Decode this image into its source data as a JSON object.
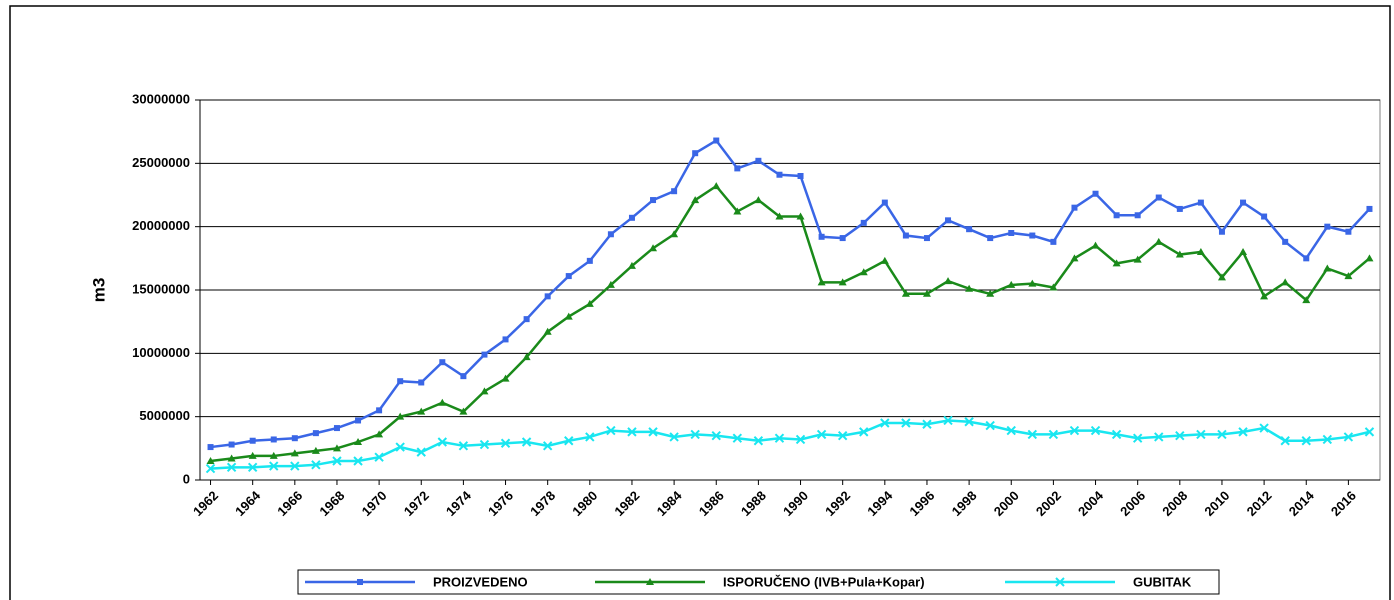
{
  "chart_data": {
    "type": "line",
    "ylabel": "m3",
    "x": [
      1962,
      1963,
      1964,
      1965,
      1966,
      1967,
      1968,
      1969,
      1970,
      1971,
      1972,
      1973,
      1974,
      1975,
      1976,
      1977,
      1978,
      1979,
      1980,
      1981,
      1982,
      1983,
      1984,
      1985,
      1986,
      1987,
      1988,
      1989,
      1990,
      1991,
      1992,
      1993,
      1994,
      1995,
      1996,
      1997,
      1998,
      1999,
      2000,
      2001,
      2002,
      2003,
      2004,
      2005,
      2006,
      2007,
      2008,
      2009,
      2010,
      2011,
      2012,
      2013,
      2014,
      2015,
      2016,
      2017
    ],
    "xlim": [
      1961.5,
      2017.5
    ],
    "xticks": [
      1962,
      1964,
      1966,
      1968,
      1970,
      1972,
      1974,
      1976,
      1978,
      1980,
      1982,
      1984,
      1986,
      1988,
      1990,
      1992,
      1994,
      1996,
      1998,
      2000,
      2002,
      2004,
      2006,
      2008,
      2010,
      2012,
      2014,
      2016
    ],
    "ylim": [
      0,
      30000000
    ],
    "yticks": [
      0,
      5000000,
      10000000,
      15000000,
      20000000,
      25000000,
      30000000
    ],
    "grid": true,
    "legend": "bottom",
    "series": [
      {
        "name": "PROIZVEDENO",
        "color": "#3a66e6",
        "marker": "square",
        "values": [
          2600000,
          2800000,
          3100000,
          3200000,
          3300000,
          3700000,
          4100000,
          4700000,
          5500000,
          7800000,
          7700000,
          9300000,
          8200000,
          9900000,
          11100000,
          12700000,
          14500000,
          16100000,
          17300000,
          19400000,
          20700000,
          22100000,
          22800000,
          25800000,
          26800000,
          24600000,
          25200000,
          24100000,
          24000000,
          19200000,
          19100000,
          20300000,
          21900000,
          19300000,
          19100000,
          20500000,
          19800000,
          19100000,
          19500000,
          19300000,
          18800000,
          21500000,
          22600000,
          20900000,
          20900000,
          22300000,
          21400000,
          21900000,
          19600000,
          21900000,
          20800000,
          18800000,
          17500000,
          20000000,
          19600000,
          21400000
        ]
      },
      {
        "name": "ISPORUČENO (IVB+Pula+Kopar)",
        "color": "#1a8a1a",
        "marker": "triangle",
        "values": [
          1500000,
          1700000,
          1900000,
          1900000,
          2100000,
          2300000,
          2500000,
          3000000,
          3600000,
          5000000,
          5400000,
          6100000,
          5400000,
          7000000,
          8000000,
          9700000,
          11700000,
          12900000,
          13900000,
          15400000,
          16900000,
          18300000,
          19400000,
          22100000,
          23200000,
          21200000,
          22100000,
          20800000,
          20800000,
          15600000,
          15600000,
          16400000,
          17300000,
          14700000,
          14700000,
          15700000,
          15100000,
          14700000,
          15400000,
          15500000,
          15200000,
          17500000,
          18500000,
          17100000,
          17400000,
          18800000,
          17800000,
          18000000,
          16000000,
          18000000,
          14500000,
          15600000,
          14200000,
          16700000,
          16100000,
          17500000
        ]
      },
      {
        "name": "GUBITAK",
        "color": "#19e6f0",
        "marker": "x",
        "values": [
          900000,
          1000000,
          1000000,
          1100000,
          1100000,
          1200000,
          1500000,
          1500000,
          1800000,
          2600000,
          2200000,
          3000000,
          2700000,
          2800000,
          2900000,
          3000000,
          2700000,
          3100000,
          3400000,
          3900000,
          3800000,
          3800000,
          3400000,
          3600000,
          3500000,
          3300000,
          3100000,
          3300000,
          3200000,
          3600000,
          3500000,
          3800000,
          4500000,
          4500000,
          4400000,
          4700000,
          4600000,
          4300000,
          3900000,
          3600000,
          3600000,
          3900000,
          3900000,
          3600000,
          3300000,
          3400000,
          3500000,
          3600000,
          3600000,
          3800000,
          4100000,
          3100000,
          3100000,
          3200000,
          3400000,
          3800000
        ]
      }
    ]
  }
}
